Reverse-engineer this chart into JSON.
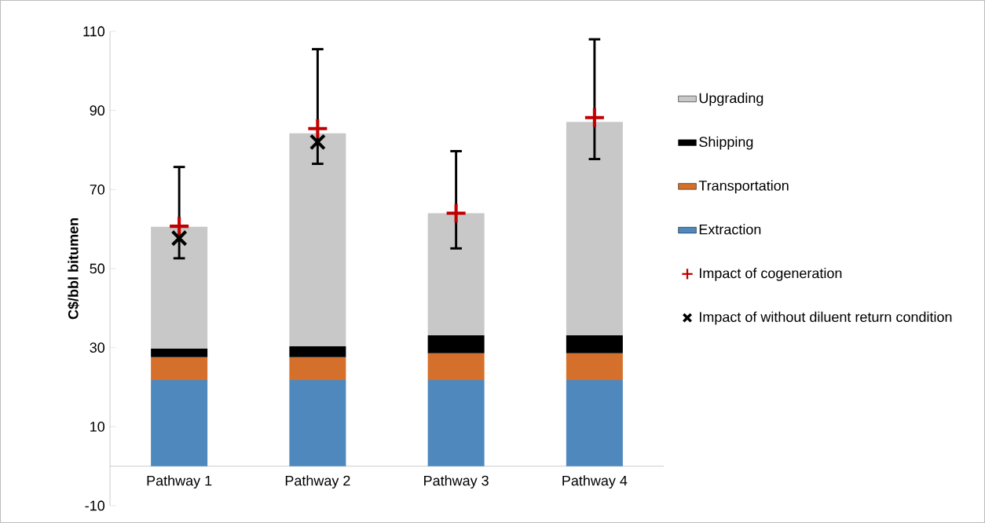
{
  "chart_data": {
    "type": "bar",
    "stacked": true,
    "ylabel": "C$/bbl bitumen",
    "categories": [
      "Pathway 1",
      "Pathway 2",
      "Pathway 3",
      "Pathway 4"
    ],
    "ylim": [
      -10,
      110
    ],
    "yticks": [
      -10,
      10,
      30,
      50,
      70,
      90,
      110
    ],
    "legend": "right",
    "series": [
      {
        "name": "Extraction",
        "color": "#4f88bd",
        "values": [
          21.8,
          21.8,
          21.8,
          21.8
        ]
      },
      {
        "name": "Transportation",
        "color": "#d4702c",
        "values": [
          5.8,
          5.8,
          6.8,
          6.8
        ]
      },
      {
        "name": "Shipping",
        "color": "#000000",
        "values": [
          2.2,
          2.8,
          4.5,
          4.5
        ]
      },
      {
        "name": "Upgrading",
        "color": "#c8c8c8",
        "values": [
          30.8,
          53.8,
          30.9,
          54.0
        ]
      },
      {
        "name": "Impact of cogeneration",
        "type": "scatter",
        "color": "#c00000",
        "x": [
          "Pathway 1",
          "Pathway 2",
          "Pathway 3",
          "Pathway 4"
        ],
        "values": [
          60.7,
          85.4,
          64.0,
          88.2
        ],
        "errors": [
          [
            52.6,
            75.7
          ],
          [
            76.5,
            105.5
          ],
          [
            55.1,
            79.7
          ],
          [
            77.7,
            108.0
          ]
        ]
      },
      {
        "name": "Impact of without diluent return condition",
        "type": "scatter",
        "color": "#000000",
        "marker": "cross",
        "x": [
          "Pathway 1",
          "Pathway 2",
          "Pathway 3",
          "Pathway 4"
        ],
        "values": [
          57.7,
          82.0,
          null,
          null
        ]
      }
    ]
  }
}
